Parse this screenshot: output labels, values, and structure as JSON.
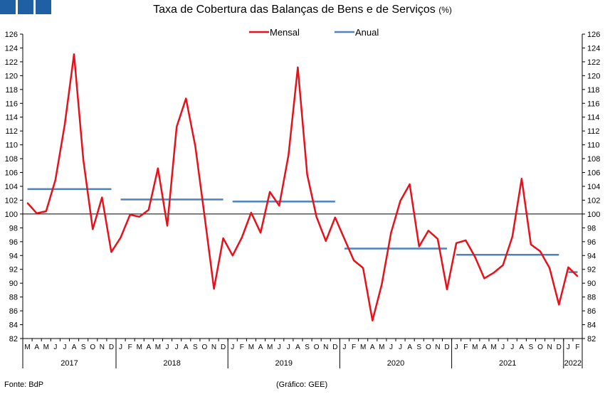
{
  "header": {
    "title": "Taxa de Cobertura das Balanças de Bens e de Serviços",
    "title_unit": "(%)"
  },
  "footer": {
    "source": "Fonte: BdP",
    "credit": "(Gráfico: GEE)"
  },
  "colors": {
    "mensal": "#e8101a",
    "anual": "#4f81bd",
    "logo": "#1f5fa3"
  },
  "chart_data": {
    "type": "line",
    "ylim": [
      82,
      126
    ],
    "yticks": [
      82,
      84,
      86,
      88,
      90,
      92,
      94,
      96,
      98,
      100,
      102,
      104,
      106,
      108,
      110,
      112,
      114,
      116,
      118,
      120,
      122,
      124,
      126
    ],
    "reference_line": 100,
    "legend_position": "top-center",
    "month_labels": [
      "M",
      "A",
      "M",
      "J",
      "J",
      "A",
      "S",
      "O",
      "N",
      "D",
      "J",
      "F",
      "M",
      "A",
      "M",
      "J",
      "J",
      "A",
      "S",
      "O",
      "N",
      "D",
      "J",
      "F",
      "M",
      "A",
      "M",
      "J",
      "J",
      "A",
      "S",
      "O",
      "N",
      "D",
      "J",
      "F",
      "M",
      "A",
      "M",
      "J",
      "J",
      "A",
      "S",
      "O",
      "N",
      "D",
      "J",
      "F",
      "M",
      "A",
      "M",
      "J",
      "J",
      "A",
      "S",
      "O",
      "N",
      "D",
      "J",
      "F"
    ],
    "years": [
      {
        "label": "2017",
        "start": 0,
        "count": 10
      },
      {
        "label": "2018",
        "start": 10,
        "count": 12
      },
      {
        "label": "2019",
        "start": 22,
        "count": 12
      },
      {
        "label": "2020",
        "start": 34,
        "count": 12
      },
      {
        "label": "2021",
        "start": 46,
        "count": 12
      },
      {
        "label": "2022",
        "start": 58,
        "count": 2
      }
    ],
    "series": [
      {
        "name": "Mensal",
        "values": [
          101.6,
          100.1,
          100.4,
          104.9,
          112.9,
          123.1,
          107.8,
          97.8,
          102.4,
          94.5,
          96.6,
          99.9,
          99.6,
          100.6,
          106.6,
          98.3,
          112.6,
          116.7,
          109.8,
          99.7,
          89.2,
          96.5,
          94.0,
          96.6,
          100.2,
          97.3,
          103.2,
          101.2,
          108.5,
          121.2,
          105.7,
          99.6,
          96.1,
          99.5,
          96.4,
          93.3,
          92.2,
          84.6,
          89.8,
          97.3,
          101.9,
          104.3,
          95.3,
          97.6,
          96.4,
          89.1,
          95.8,
          96.2,
          93.8,
          90.7,
          91.5,
          92.6,
          96.7,
          105.1,
          95.6,
          94.6,
          92.2,
          86.9,
          92.3,
          91.0
        ]
      },
      {
        "name": "Anual",
        "segments": [
          {
            "from": 0,
            "to": 9,
            "value": 103.6
          },
          {
            "from": 10,
            "to": 21,
            "value": 102.1
          },
          {
            "from": 22,
            "to": 33,
            "value": 101.8
          },
          {
            "from": 34,
            "to": 45,
            "value": 95.0
          },
          {
            "from": 46,
            "to": 57,
            "value": 94.1
          },
          {
            "from": 58,
            "to": 59,
            "value": 91.6
          }
        ]
      }
    ]
  }
}
